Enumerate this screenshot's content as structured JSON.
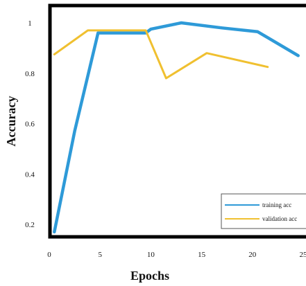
{
  "chart_data": {
    "type": "line",
    "title": "",
    "xlabel": "Epochs",
    "ylabel": "Accuracy",
    "xlim": [
      0,
      25
    ],
    "ylim": [
      0.15,
      1.05
    ],
    "grid": false,
    "legend_position": "bottom-right",
    "x_ticks": [
      "0",
      "5",
      "10",
      "15",
      "20",
      "25"
    ],
    "y_ticks": [
      "0.2",
      "0.4",
      "0.6",
      "0.8",
      "1"
    ],
    "series": [
      {
        "name": "training acc",
        "color": "#2e9ad8",
        "x": [
          0.5,
          2.5,
          4.8,
          9.5,
          10,
          13,
          17,
          20.5,
          24.5
        ],
        "y": [
          0.17,
          0.57,
          0.96,
          0.96,
          0.975,
          1.0,
          0.98,
          0.965,
          0.87
        ]
      },
      {
        "name": "validation acc",
        "color": "#f0c030",
        "x": [
          0.5,
          3.8,
          9.5,
          11.5,
          15.5,
          21.5
        ],
        "y": [
          0.875,
          0.97,
          0.97,
          0.78,
          0.88,
          0.825
        ]
      }
    ]
  }
}
